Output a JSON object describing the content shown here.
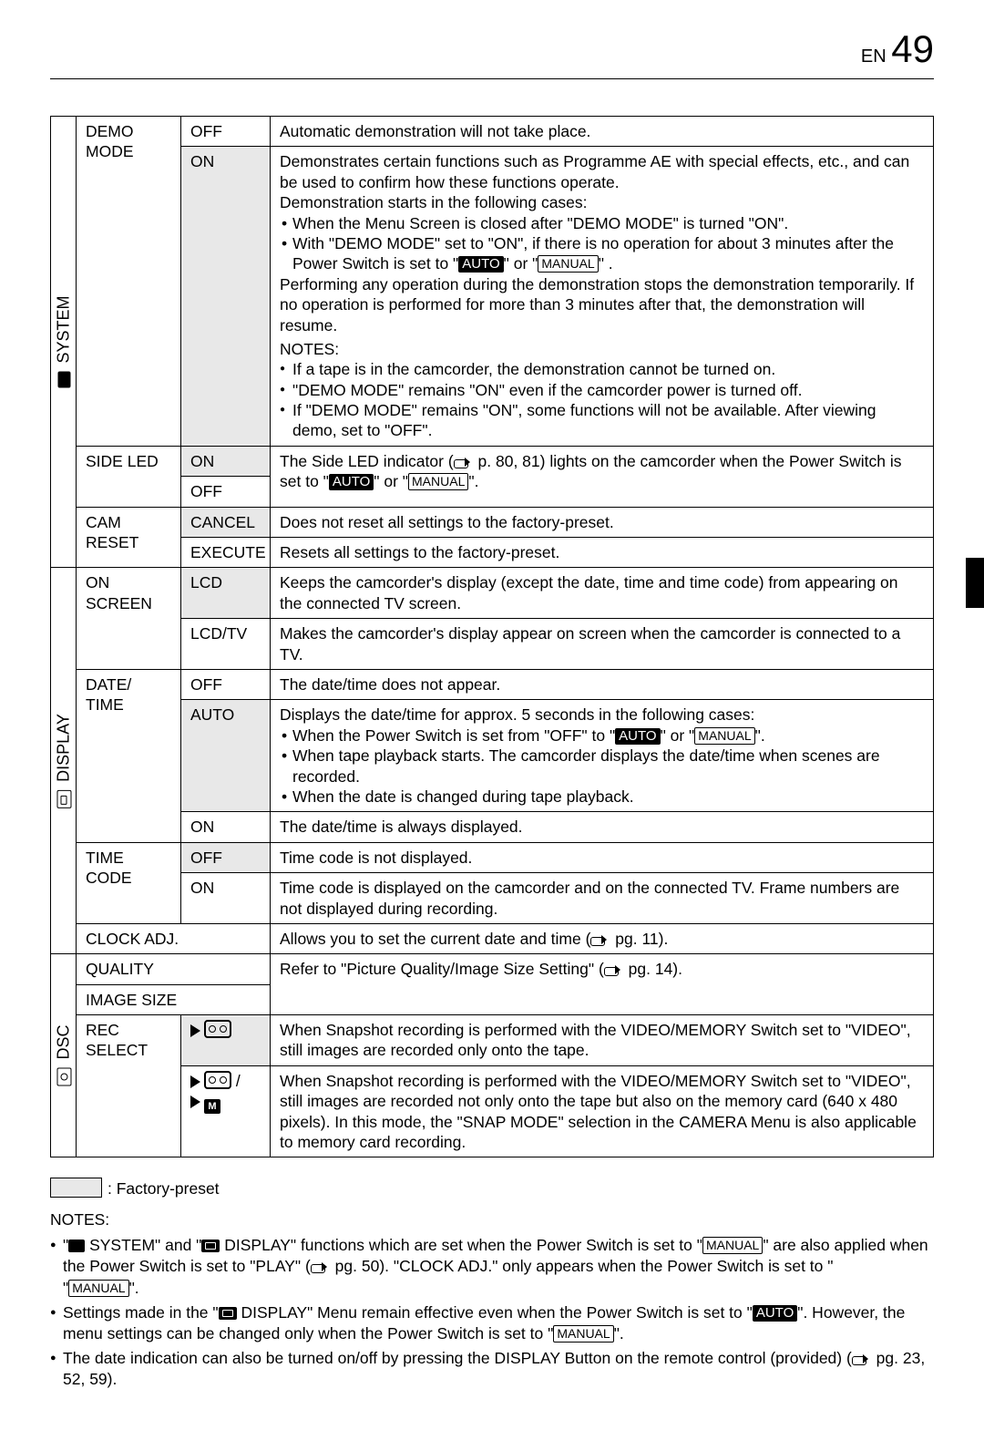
{
  "page": {
    "lang": "EN",
    "number": "49"
  },
  "legend": {
    "label": ": Factory-preset"
  },
  "sections": {
    "system": {
      "label": "SYSTEM"
    },
    "display": {
      "label": "DISPLAY"
    },
    "dsc": {
      "label": "DSC"
    }
  },
  "rows": {
    "demo": {
      "item": "DEMO MODE",
      "off": {
        "val": "OFF",
        "desc": "Automatic demonstration will not take place."
      },
      "on": {
        "val": "ON",
        "intro": "Demonstrates certain functions such as Programme AE with special effects, etc., and can be used to confirm how these functions operate.\nDemonstration starts in the following cases:",
        "case1": "When the Menu Screen is closed after \"DEMO MODE\" is turned \"ON\".",
        "case2a": "With \"DEMO MODE\" set to \"ON\", if there is no operation for about 3 minutes after the Power Switch is set to \"",
        "case2b": "\" or \"",
        "case2c": "\" .",
        "after": "Performing any operation during the demonstration stops the demonstration temporarily. If no operation is performed for more than 3 minutes after that, the demonstration will resume.",
        "notesTitle": "NOTES:",
        "n1": "If a tape is in the camcorder, the demonstration cannot be turned on.",
        "n2": "\"DEMO MODE\" remains \"ON\" even if the camcorder power is turned off.",
        "n3": "If \"DEMO MODE\" remains \"ON\", some functions will not be available. After viewing demo, set to \"OFF\"."
      }
    },
    "sideled": {
      "item": "SIDE LED",
      "on": {
        "val": "ON",
        "d1": "The Side LED indicator (",
        "d2": " p. 80, 81) lights on the camcorder when the Power Switch is set to \"",
        "d3": "\" or \"",
        "d4": "\"."
      },
      "off": {
        "val": "OFF"
      }
    },
    "camreset": {
      "item": "CAM RESET",
      "cancel": {
        "val": "CANCEL",
        "desc": "Does not reset all settings to the factory-preset."
      },
      "execute": {
        "val": "EXECUTE",
        "desc": "Resets all settings to the factory-preset."
      }
    },
    "onscreen": {
      "item": "ON SCREEN",
      "lcd": {
        "val": "LCD",
        "desc": "Keeps the camcorder's display (except the date, time and time code) from appearing on the connected TV screen."
      },
      "lcdtv": {
        "val": "LCD/TV",
        "desc": "Makes the camcorder's display appear on screen when the camcorder is connected to a TV."
      }
    },
    "datetime": {
      "item": "DATE/\nTIME",
      "off": {
        "val": "OFF",
        "desc": "The date/time does not appear."
      },
      "auto": {
        "val": "AUTO",
        "intro": "Displays the date/time for approx. 5 seconds in the following cases:",
        "b1a": "When the Power Switch is set from \"OFF\" to \"",
        "b1b": "\" or \"",
        "b1c": "\".",
        "b2": "When tape playback starts. The camcorder displays the date/time when scenes are recorded.",
        "b3": "When the date is changed during tape playback."
      },
      "on": {
        "val": "ON",
        "desc": "The date/time is always displayed."
      }
    },
    "timecode": {
      "item": "TIME CODE",
      "off": {
        "val": "OFF",
        "desc": "Time code is not displayed."
      },
      "on": {
        "val": "ON",
        "desc": "Time code is displayed on the camcorder and on the connected TV. Frame numbers are not displayed during recording."
      }
    },
    "clockadj": {
      "item": "CLOCK ADJ.",
      "d1": "Allows you to set the current date and time (",
      "d2": " pg. 11)."
    },
    "quality": {
      "item": "QUALITY",
      "d1": "Refer to \"Picture Quality/Image Size Setting\" (",
      "d2": " pg. 14)."
    },
    "imagesize": {
      "item": "IMAGE SIZE"
    },
    "recselect": {
      "item": "REC SELECT",
      "tape": "When Snapshot recording is performed with the VIDEO/MEMORY Switch set to \"VIDEO\", still images are recorded only onto the tape.",
      "both": "When Snapshot recording is performed with the VIDEO/MEMORY Switch set to \"VIDEO\", still images are recorded not only onto the tape but also on the memory card (640 x 480 pixels). In this mode, the \"SNAP MODE\" selection in the CAMERA Menu is also applicable to memory card recording."
    }
  },
  "badges": {
    "auto": "AUTO",
    "manual": "MANUAL"
  },
  "footer": {
    "notesTitle": "NOTES:",
    "n1a": "\"",
    "n1b": " SYSTEM\" and \"",
    "n1c": " DISPLAY\" functions which are set when the Power Switch is set to \"",
    "n1d": "\" are also applied when the Power Switch is set to \"PLAY\" (",
    "n1e": " pg. 50). \"CLOCK ADJ.\" only appears when the Power Switch is set to \"",
    "n1f": "\".",
    "n2a": "Settings made in the \"",
    "n2b": " DISPLAY\" Menu remain effective even when the Power Switch is set to \"",
    "n2c": "\". However, the menu settings can be changed only when the Power Switch is set to \"",
    "n2d": "\".",
    "n3a": "The date indication can also be turned on/off by pressing the DISPLAY Button on the remote control (provided) (",
    "n3b": " pg. 23, 52, 59)."
  }
}
